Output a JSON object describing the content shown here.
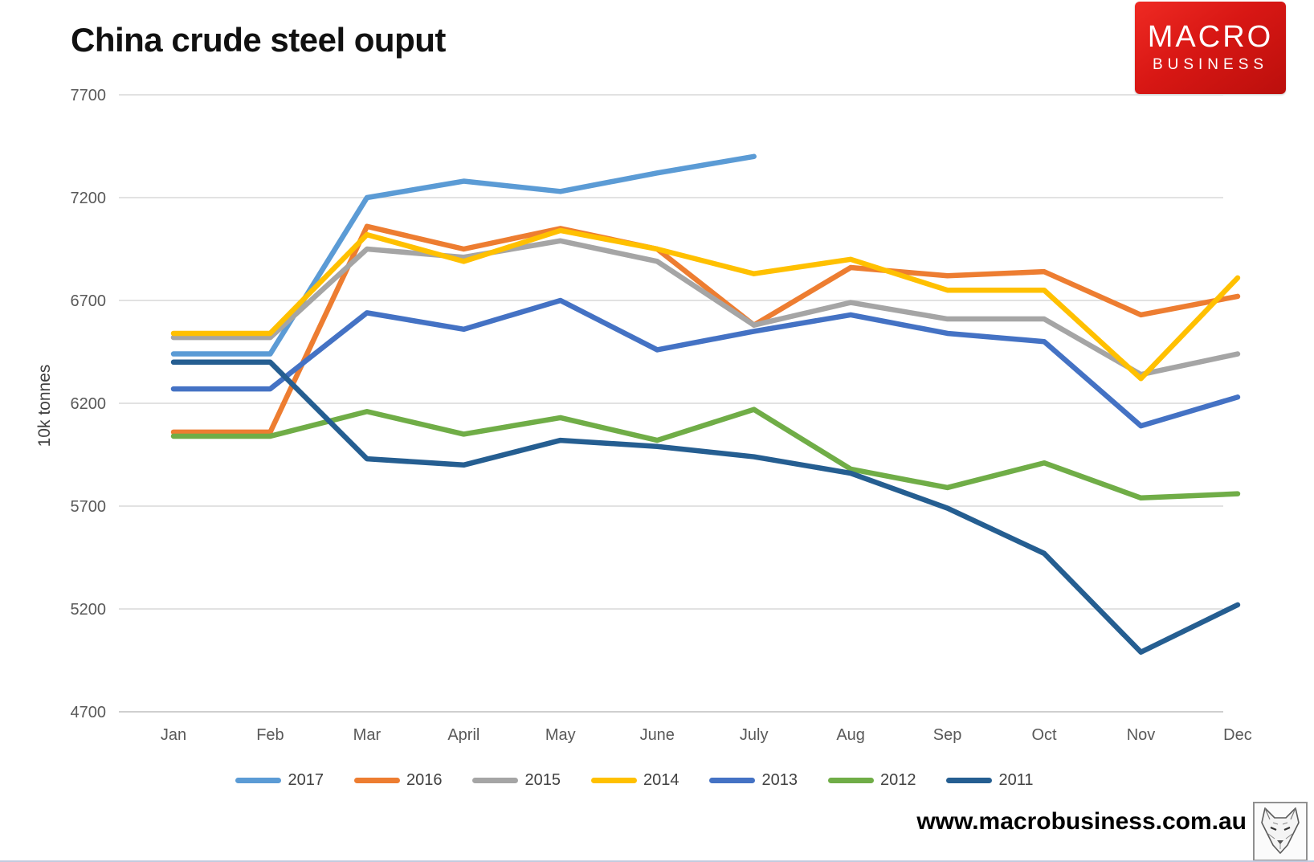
{
  "title": "China crude steel ouput",
  "logo": {
    "line1": "MACRO",
    "line2": "BUSINESS"
  },
  "y_axis": {
    "title": "10k tonnes",
    "ticks": [
      7700,
      7200,
      6700,
      6200,
      5700,
      5200,
      4700
    ]
  },
  "x_axis": {
    "months": [
      "Jan",
      "Feb",
      "Mar",
      "April",
      "May",
      "June",
      "July",
      "Aug",
      "Sep",
      "Oct",
      "Nov",
      "Dec"
    ]
  },
  "footer": {
    "url": "www.macrobusiness.com.au",
    "icon": "fox-sketch-icon"
  },
  "chart_data": {
    "type": "line",
    "title": "China crude steel ouput",
    "xlabel": "",
    "ylabel": "10k tonnes",
    "categories": [
      "Jan",
      "Feb",
      "Mar",
      "April",
      "May",
      "June",
      "July",
      "Aug",
      "Sep",
      "Oct",
      "Nov",
      "Dec"
    ],
    "ylim": [
      4700,
      7700
    ],
    "ytick_step": 500,
    "grid": "horizontal",
    "legend_position": "bottom",
    "series": [
      {
        "name": "2017",
        "color": "#5B9BD5",
        "values": [
          6440,
          6440,
          7200,
          7280,
          7230,
          7320,
          7400,
          null,
          null,
          null,
          null,
          null
        ]
      },
      {
        "name": "2016",
        "color": "#ED7D31",
        "values": [
          6060,
          6060,
          7060,
          6950,
          7050,
          6950,
          6580,
          6860,
          6820,
          6840,
          6630,
          6720
        ]
      },
      {
        "name": "2015",
        "color": "#A5A5A5",
        "values": [
          6520,
          6520,
          6950,
          6910,
          6990,
          6890,
          6580,
          6690,
          6610,
          6610,
          6340,
          6440
        ]
      },
      {
        "name": "2014",
        "color": "#FFC000",
        "values": [
          6540,
          6540,
          7020,
          6890,
          7040,
          6950,
          6830,
          6900,
          6750,
          6750,
          6320,
          6810
        ]
      },
      {
        "name": "2013",
        "color": "#4472C4",
        "values": [
          6270,
          6270,
          6640,
          6560,
          6700,
          6460,
          6550,
          6630,
          6540,
          6500,
          6090,
          6230
        ]
      },
      {
        "name": "2012",
        "color": "#70AD47",
        "values": [
          6040,
          6040,
          6160,
          6050,
          6130,
          6020,
          6170,
          5880,
          5790,
          5910,
          5740,
          5760
        ]
      },
      {
        "name": "2011",
        "color": "#255E91",
        "values": [
          6400,
          6400,
          5930,
          5900,
          6020,
          5990,
          5940,
          5860,
          5690,
          5470,
          4990,
          5220
        ]
      }
    ]
  }
}
